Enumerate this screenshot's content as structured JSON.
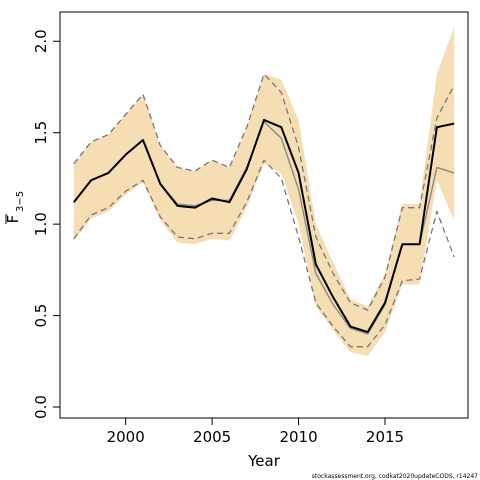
{
  "chart_data": {
    "type": "line",
    "xlabel": "Year",
    "ylabel": "F̅₃₋₅",
    "ylabel_main": "F",
    "ylabel_sub": "3−5",
    "xlim": [
      1996.2,
      2019.8
    ],
    "ylim": [
      -0.06,
      2.16
    ],
    "x_ticks": [
      2000,
      2005,
      2010,
      2015
    ],
    "y_ticks": [
      0.0,
      0.5,
      1.0,
      1.5,
      2.0
    ],
    "y_tick_labels": [
      "0.0",
      "0.5",
      "1.0",
      "1.5",
      "2.0"
    ],
    "band_color": "#F5DEB3",
    "years": [
      1997,
      1998,
      1999,
      2000,
      2001,
      2002,
      2003,
      2004,
      2005,
      2006,
      2007,
      2008,
      2009,
      2010,
      2011,
      2012,
      2013,
      2014,
      2015,
      2016,
      2017,
      2018,
      2019
    ],
    "series": [
      {
        "key": "current_estimate",
        "color": "#000000",
        "values": [
          1.12,
          1.24,
          1.28,
          1.38,
          1.46,
          1.22,
          1.1,
          1.09,
          1.14,
          1.12,
          1.3,
          1.57,
          1.53,
          1.28,
          0.78,
          0.6,
          0.44,
          0.41,
          0.57,
          0.89,
          0.89,
          1.53,
          1.55
        ]
      },
      {
        "key": "previous_estimate",
        "color": "#888888",
        "values": [
          1.12,
          1.24,
          1.28,
          1.38,
          1.46,
          1.22,
          1.11,
          1.1,
          1.13,
          1.13,
          1.31,
          1.56,
          1.47,
          1.19,
          0.73,
          0.56,
          0.43,
          0.4,
          0.56,
          0.89,
          0.89,
          1.31,
          1.28
        ]
      },
      {
        "key": "band_upper",
        "style": "fill",
        "values": [
          1.33,
          1.45,
          1.49,
          1.6,
          1.71,
          1.43,
          1.31,
          1.29,
          1.35,
          1.31,
          1.53,
          1.82,
          1.79,
          1.57,
          1.0,
          0.79,
          0.59,
          0.55,
          0.73,
          1.11,
          1.11,
          1.82,
          2.08
        ]
      },
      {
        "key": "band_lower",
        "style": "fill",
        "values": [
          0.91,
          1.03,
          1.07,
          1.16,
          1.23,
          1.02,
          0.9,
          0.89,
          0.92,
          0.91,
          1.09,
          1.33,
          1.28,
          1.0,
          0.55,
          0.42,
          0.3,
          0.28,
          0.41,
          0.67,
          0.67,
          1.24,
          1.02
        ]
      },
      {
        "key": "prev_ci_upper",
        "color": "#777777",
        "dashed": true,
        "values": [
          1.33,
          1.45,
          1.49,
          1.6,
          1.71,
          1.43,
          1.31,
          1.29,
          1.35,
          1.31,
          1.53,
          1.82,
          1.72,
          1.42,
          0.93,
          0.73,
          0.57,
          0.53,
          0.71,
          1.09,
          1.09,
          1.58,
          1.76
        ]
      },
      {
        "key": "prev_ci_lower",
        "color": "#777777",
        "dashed": true,
        "values": [
          0.92,
          1.05,
          1.09,
          1.18,
          1.24,
          1.04,
          0.93,
          0.92,
          0.95,
          0.95,
          1.12,
          1.35,
          1.25,
          0.93,
          0.57,
          0.44,
          0.33,
          0.33,
          0.45,
          0.69,
          0.7,
          1.07,
          0.82
        ]
      }
    ]
  },
  "footer_note": "stockassessment.org, codkat2020updateCODS, r14247"
}
